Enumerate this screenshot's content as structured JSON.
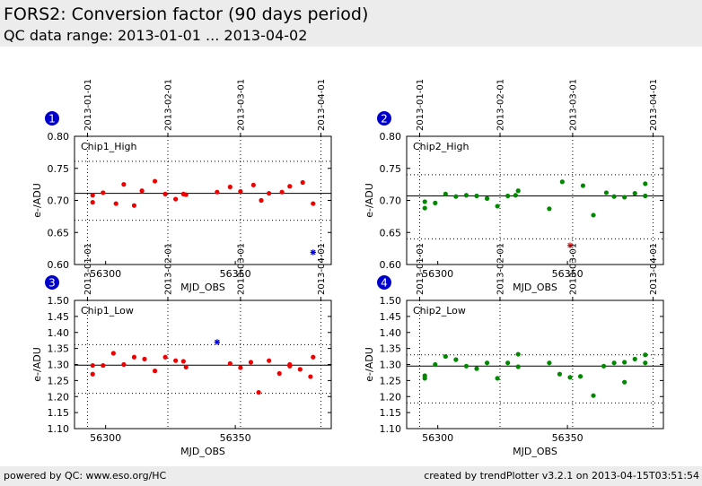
{
  "header": {
    "title": "FORS2: Conversion factor (90 days period)",
    "subtitle": "QC data range: 2013-01-01 ... 2013-04-02"
  },
  "footer": {
    "left": "powered by QC: www.eso.org/HC",
    "right": "created by trendPlotter v3.2.1 on 2013-04-15T03:51:54"
  },
  "colors": {
    "accent_number": "#0000cc",
    "series_red": "#ee0000",
    "series_green": "#008800",
    "outlier": "#0000ee",
    "outlier_red": "#ee2222"
  },
  "chart_data": [
    {
      "type": "scatter",
      "panel_number": "1",
      "label": "Chip1_High",
      "xlabel": "MJD_OBS",
      "ylabel": "e-/ADU",
      "xlim": [
        56288,
        56387
      ],
      "ylim": [
        0.6,
        0.8
      ],
      "x_ticks": [
        56300,
        56350
      ],
      "y_ticks": [
        0.6,
        0.65,
        0.7,
        0.75,
        0.8
      ],
      "y_tick_labels": [
        "0.60",
        "0.65",
        "0.70",
        "0.75",
        "0.80"
      ],
      "date_ticks": [
        {
          "mjd": 56293,
          "label": "2013-01-01"
        },
        {
          "mjd": 56324,
          "label": "2013-02-01"
        },
        {
          "mjd": 56352,
          "label": "2013-03-01"
        },
        {
          "mjd": 56383,
          "label": "2013-04-01"
        }
      ],
      "reference_line": 0.711,
      "upper_limit": 0.761,
      "lower_limit": 0.669,
      "color": "#ee0000",
      "points": [
        [
          56295,
          0.708
        ],
        [
          56295,
          0.697
        ],
        [
          56299,
          0.712
        ],
        [
          56304,
          0.695
        ],
        [
          56307,
          0.725
        ],
        [
          56311,
          0.692
        ],
        [
          56314,
          0.715
        ],
        [
          56319,
          0.73
        ],
        [
          56323,
          0.71
        ],
        [
          56327,
          0.702
        ],
        [
          56330,
          0.71
        ],
        [
          56331,
          0.709
        ],
        [
          56343,
          0.713
        ],
        [
          56348,
          0.721
        ],
        [
          56352,
          0.714
        ],
        [
          56357,
          0.724
        ],
        [
          56360,
          0.7
        ],
        [
          56363,
          0.711
        ],
        [
          56368,
          0.713
        ],
        [
          56371,
          0.722
        ],
        [
          56376,
          0.728
        ],
        [
          56380,
          0.695
        ]
      ],
      "outliers": [
        [
          56380,
          0.619
        ]
      ],
      "outlier_color": "#0000ee"
    },
    {
      "type": "scatter",
      "panel_number": "2",
      "label": "Chip2_High",
      "xlabel": "MJD_OBS",
      "ylabel": "e-/ADU",
      "xlim": [
        56288,
        56387
      ],
      "ylim": [
        0.6,
        0.8
      ],
      "x_ticks": [
        56300,
        56350
      ],
      "y_ticks": [
        0.6,
        0.65,
        0.7,
        0.75,
        0.8
      ],
      "y_tick_labels": [
        "0.60",
        "0.65",
        "0.70",
        "0.75",
        "0.80"
      ],
      "date_ticks": [
        {
          "mjd": 56293,
          "label": "2013-01-01"
        },
        {
          "mjd": 56324,
          "label": "2013-02-01"
        },
        {
          "mjd": 56352,
          "label": "2013-03-01"
        },
        {
          "mjd": 56383,
          "label": "2013-04-01"
        }
      ],
      "reference_line": 0.707,
      "upper_limit": 0.74,
      "lower_limit": 0.64,
      "color": "#008800",
      "points": [
        [
          56295,
          0.698
        ],
        [
          56295,
          0.688
        ],
        [
          56299,
          0.696
        ],
        [
          56303,
          0.71
        ],
        [
          56307,
          0.706
        ],
        [
          56311,
          0.708
        ],
        [
          56315,
          0.707
        ],
        [
          56319,
          0.703
        ],
        [
          56323,
          0.691
        ],
        [
          56327,
          0.707
        ],
        [
          56330,
          0.708
        ],
        [
          56331,
          0.715
        ],
        [
          56343,
          0.687
        ],
        [
          56348,
          0.729
        ],
        [
          56356,
          0.723
        ],
        [
          56360,
          0.677
        ],
        [
          56365,
          0.712
        ],
        [
          56368,
          0.706
        ],
        [
          56372,
          0.705
        ],
        [
          56376,
          0.711
        ],
        [
          56380,
          0.726
        ],
        [
          56380,
          0.707
        ]
      ],
      "outliers": [
        [
          56351,
          0.63
        ]
      ],
      "outlier_color": "#ee2222"
    },
    {
      "type": "scatter",
      "panel_number": "3",
      "label": "Chip1_Low",
      "xlabel": "MJD_OBS",
      "ylabel": "e-/ADU",
      "xlim": [
        56288,
        56387
      ],
      "ylim": [
        1.1,
        1.5
      ],
      "x_ticks": [
        56300,
        56350
      ],
      "y_ticks": [
        1.1,
        1.15,
        1.2,
        1.25,
        1.3,
        1.35,
        1.4,
        1.45,
        1.5
      ],
      "y_tick_labels": [
        "1.10",
        "1.15",
        "1.20",
        "1.25",
        "1.30",
        "1.35",
        "1.40",
        "1.45",
        "1.50"
      ],
      "date_ticks": [
        {
          "mjd": 56293,
          "label": "2013-01-01"
        },
        {
          "mjd": 56324,
          "label": "2013-02-01"
        },
        {
          "mjd": 56352,
          "label": "2013-03-01"
        },
        {
          "mjd": 56383,
          "label": "2013-04-01"
        }
      ],
      "reference_line": 1.298,
      "upper_limit": 1.362,
      "lower_limit": 1.21,
      "color": "#ee0000",
      "points": [
        [
          56295,
          1.297
        ],
        [
          56295,
          1.27
        ],
        [
          56299,
          1.297
        ],
        [
          56303,
          1.335
        ],
        [
          56307,
          1.3
        ],
        [
          56311,
          1.323
        ],
        [
          56315,
          1.317
        ],
        [
          56319,
          1.28
        ],
        [
          56323,
          1.323
        ],
        [
          56327,
          1.312
        ],
        [
          56330,
          1.31
        ],
        [
          56331,
          1.292
        ],
        [
          56348,
          1.303
        ],
        [
          56352,
          1.29
        ],
        [
          56356,
          1.307
        ],
        [
          56359,
          1.213
        ],
        [
          56363,
          1.312
        ],
        [
          56367,
          1.272
        ],
        [
          56371,
          1.3
        ],
        [
          56371,
          1.295
        ],
        [
          56375,
          1.285
        ],
        [
          56379,
          1.262
        ],
        [
          56380,
          1.323
        ]
      ],
      "outliers": [
        [
          56343,
          1.37
        ]
      ],
      "outlier_color": "#0000ee"
    },
    {
      "type": "scatter",
      "panel_number": "4",
      "label": "Chip2_Low",
      "xlabel": "MJD_OBS",
      "ylabel": "e-/ADU",
      "xlim": [
        56288,
        56387
      ],
      "ylim": [
        1.1,
        1.5
      ],
      "x_ticks": [
        56300,
        56350
      ],
      "y_ticks": [
        1.1,
        1.15,
        1.2,
        1.25,
        1.3,
        1.35,
        1.4,
        1.45,
        1.5
      ],
      "y_tick_labels": [
        "1.10",
        "1.15",
        "1.20",
        "1.25",
        "1.30",
        "1.35",
        "1.40",
        "1.45",
        "1.50"
      ],
      "date_ticks": [
        {
          "mjd": 56293,
          "label": "2013-01-01"
        },
        {
          "mjd": 56324,
          "label": "2013-02-01"
        },
        {
          "mjd": 56352,
          "label": "2013-03-01"
        },
        {
          "mjd": 56383,
          "label": "2013-04-01"
        }
      ],
      "reference_line": 1.295,
      "upper_limit": 1.33,
      "lower_limit": 1.18,
      "color": "#008800",
      "points": [
        [
          56295,
          1.265
        ],
        [
          56295,
          1.257
        ],
        [
          56299,
          1.3
        ],
        [
          56303,
          1.325
        ],
        [
          56307,
          1.315
        ],
        [
          56311,
          1.295
        ],
        [
          56315,
          1.287
        ],
        [
          56319,
          1.305
        ],
        [
          56323,
          1.257
        ],
        [
          56327,
          1.305
        ],
        [
          56331,
          1.332
        ],
        [
          56331,
          1.293
        ],
        [
          56343,
          1.305
        ],
        [
          56347,
          1.27
        ],
        [
          56351,
          1.26
        ],
        [
          56355,
          1.263
        ],
        [
          56360,
          1.203
        ],
        [
          56364,
          1.295
        ],
        [
          56368,
          1.305
        ],
        [
          56372,
          1.307
        ],
        [
          56372,
          1.245
        ],
        [
          56376,
          1.317
        ],
        [
          56380,
          1.33
        ],
        [
          56380,
          1.305
        ]
      ],
      "outliers": [],
      "outlier_color": "#0000ee"
    }
  ]
}
